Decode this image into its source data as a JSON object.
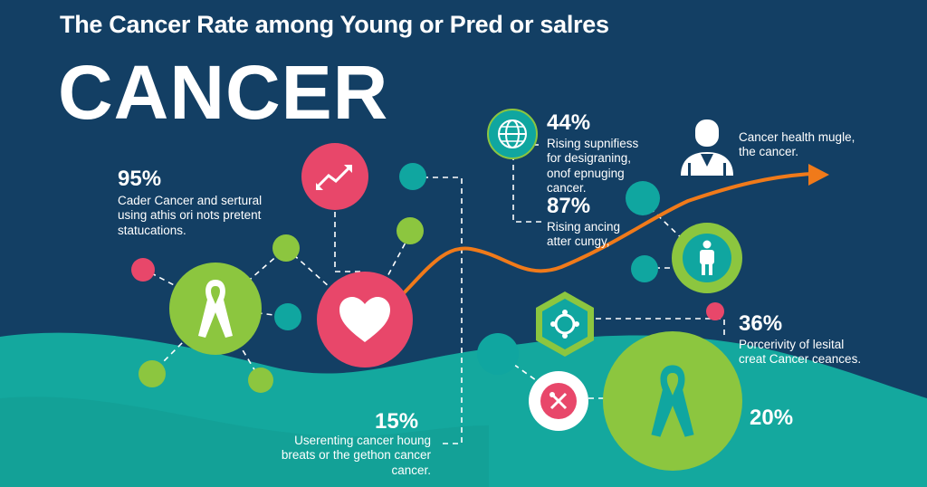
{
  "header": {
    "subtitle": "The Cancer Rate among Young or Pred or salres",
    "headline": "CANCER"
  },
  "stats": [
    {
      "value": "95%",
      "text": "Cader Cancer and sertural using athis ori nots pretent statucations."
    },
    {
      "value": "44%",
      "text": "Rising supnifiess for desigraning, onof epnuging cancer."
    },
    {
      "value": "87%",
      "text": "Rising ancing atter cungy,"
    },
    {
      "value": "36%",
      "text": "Porcerivity of lesital creat Cancer ceances."
    },
    {
      "value": "15%",
      "text": "Userenting cancer houng breats or the gethon cancer cancer."
    },
    {
      "value": "20%",
      "text": ""
    }
  ],
  "person_note": {
    "text": "Cancer health mugle, the cancer."
  },
  "colors": {
    "background": "#133f64",
    "wave": "#14a89e",
    "green": "#8cc63f",
    "teal": "#10a6a0",
    "pink": "#e8476a",
    "orange": "#f07a1a"
  },
  "icons": [
    "trend-arrow-icon",
    "globe-icon",
    "person-icon",
    "ribbon-icon",
    "heart-icon",
    "figure-icon",
    "gear-icon",
    "tools-icon"
  ]
}
